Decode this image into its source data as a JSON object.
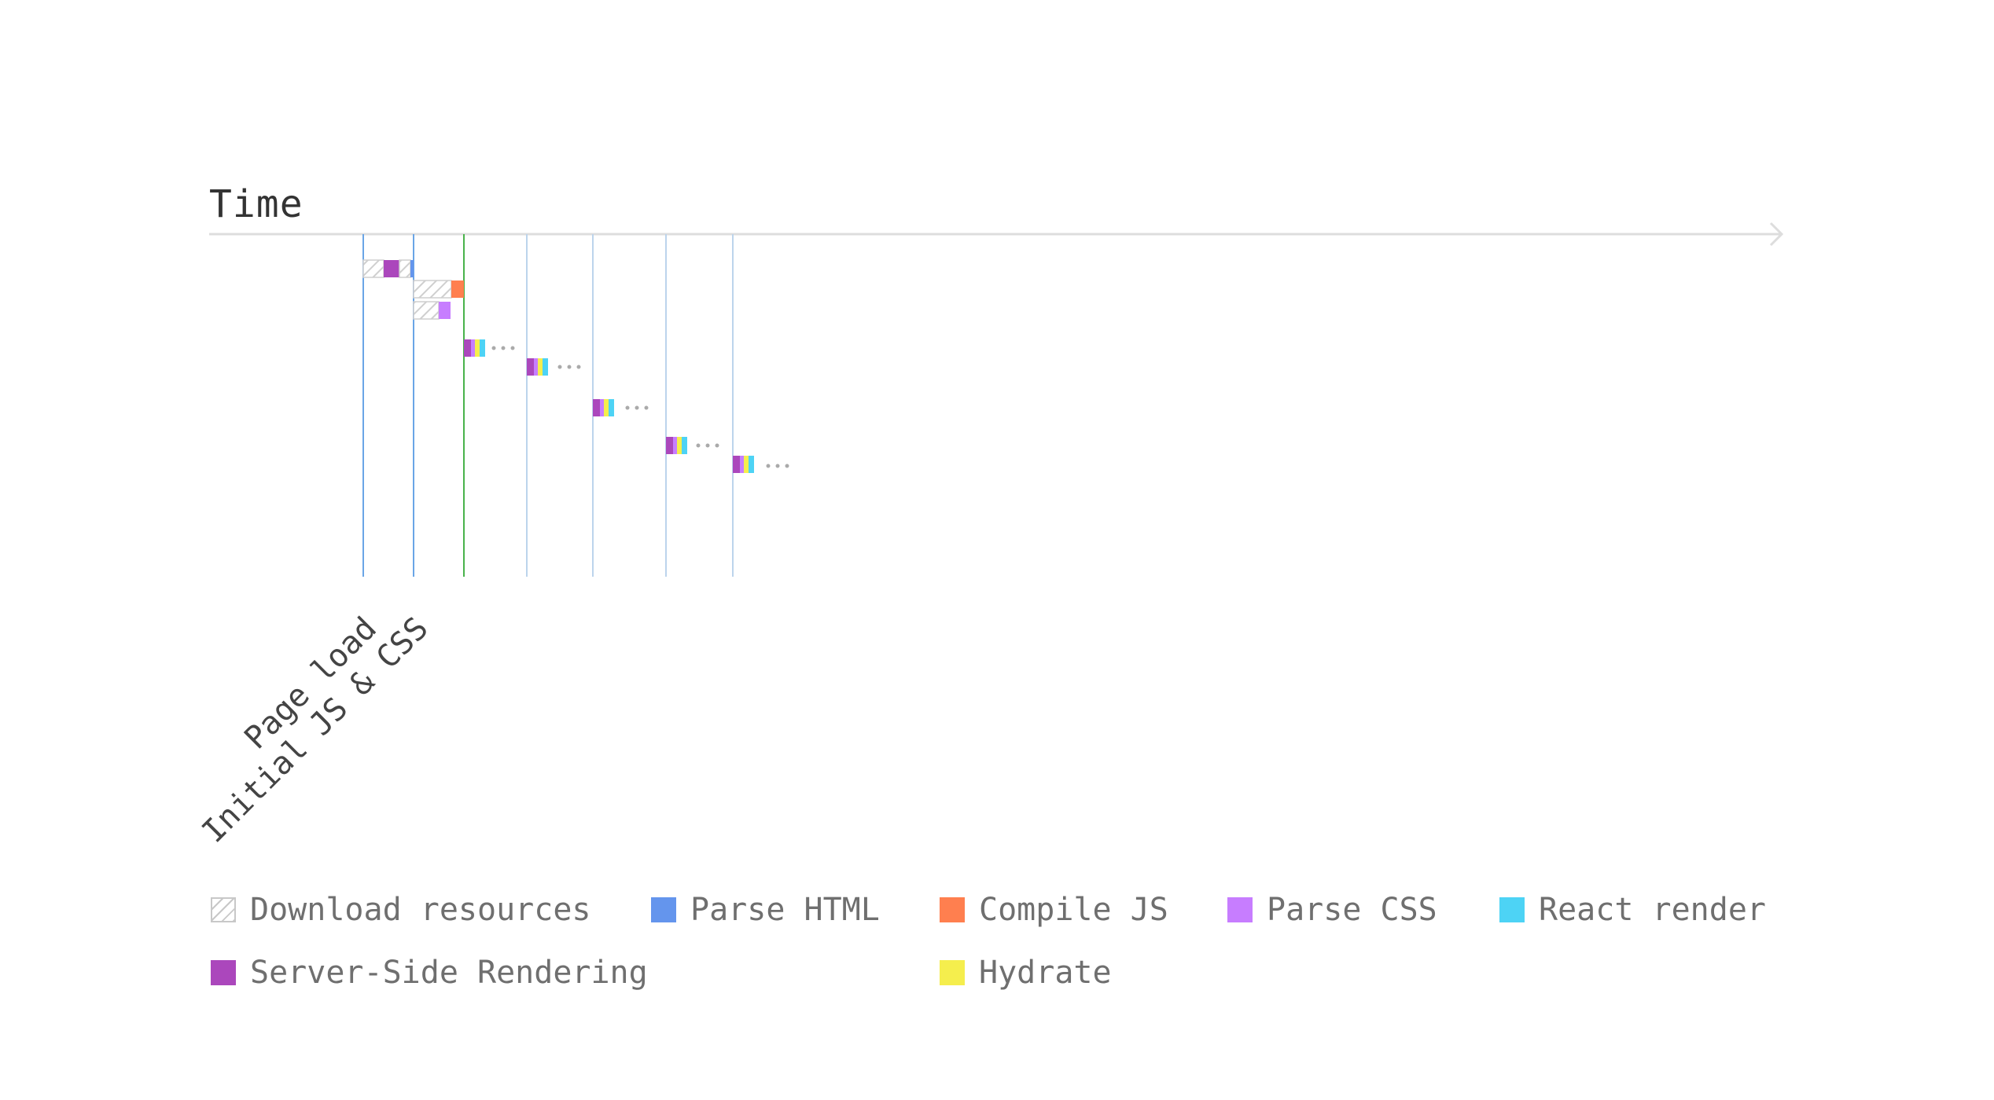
{
  "axis": {
    "label": "Time"
  },
  "events": [
    {
      "label": "Page load"
    },
    {
      "label": "Initial JS & CSS"
    }
  ],
  "legend": [
    {
      "label": "Download resources",
      "color": "#c8c8c8",
      "pattern": "hatch",
      "icon": "hatch-swatch"
    },
    {
      "label": "Parse HTML",
      "color": "#6495ED"
    },
    {
      "label": "Compile JS",
      "color": "#FF7F4F"
    },
    {
      "label": "Parse CSS",
      "color": "#C77DFF"
    },
    {
      "label": "React render",
      "color": "#4DD3F5"
    },
    {
      "label": "Server-Side Rendering",
      "color": "#AB47BC"
    },
    {
      "label": "Hydrate",
      "color": "#F5EE4D"
    }
  ],
  "colors": {
    "axis": "#dddddd",
    "request_line": "#bcd4ec",
    "page_line": "#6aa5e6",
    "hydrate_line": "#49b34b",
    "ellipsis": "#aaaaaa"
  }
}
